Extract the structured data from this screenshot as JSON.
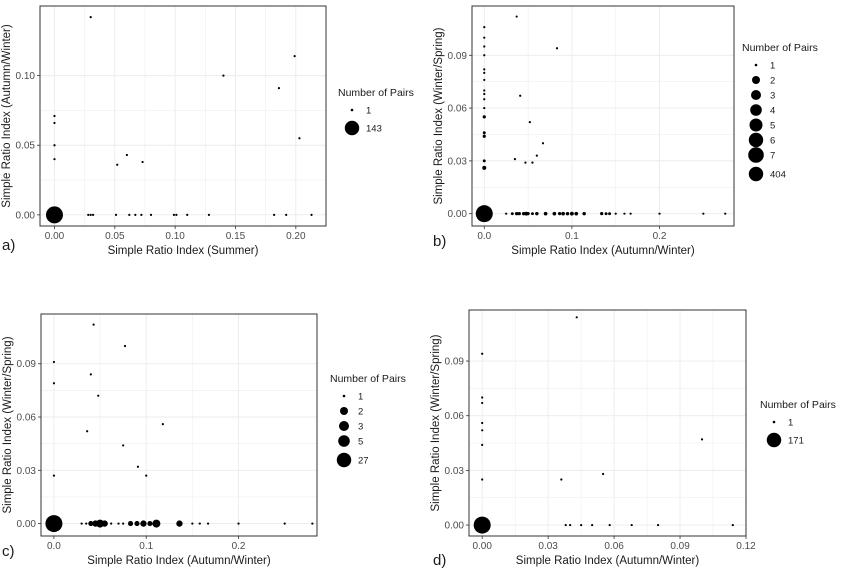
{
  "chart_data": [
    {
      "panel": "a)",
      "type": "scatter",
      "xlabel": "Simple Ratio Index (Summer)",
      "ylabel": "Simple Ratio Index (Autumn/Winter)",
      "xlim": [
        -0.012,
        0.225
      ],
      "ylim": [
        -0.008,
        0.15
      ],
      "xticks": [
        0.0,
        0.05,
        0.1,
        0.15,
        0.2
      ],
      "xtick_labels": [
        "0.00",
        "0.05",
        "0.10",
        "0.15",
        "0.20"
      ],
      "yticks": [
        0.0,
        0.05,
        0.1
      ],
      "ytick_labels": [
        "0.00",
        "0.05",
        "0.10"
      ],
      "legend": {
        "title": "Number of Pairs",
        "entries": [
          {
            "label": "1",
            "pairs": 1
          },
          {
            "label": "143",
            "pairs": 143
          }
        ]
      },
      "points": [
        {
          "x": 0.0,
          "y": 0.0,
          "pairs": 143
        },
        {
          "x": 0.0,
          "y": 0.04,
          "pairs": 1
        },
        {
          "x": 0.0,
          "y": 0.05,
          "pairs": 1
        },
        {
          "x": 0.0,
          "y": 0.066,
          "pairs": 1
        },
        {
          "x": 0.0,
          "y": 0.071,
          "pairs": 1
        },
        {
          "x": 0.028,
          "y": 0.0,
          "pairs": 1
        },
        {
          "x": 0.03,
          "y": 0.0,
          "pairs": 1
        },
        {
          "x": 0.032,
          "y": 0.0,
          "pairs": 1
        },
        {
          "x": 0.03,
          "y": 0.142,
          "pairs": 1
        },
        {
          "x": 0.051,
          "y": 0.0,
          "pairs": 1
        },
        {
          "x": 0.052,
          "y": 0.036,
          "pairs": 1
        },
        {
          "x": 0.06,
          "y": 0.043,
          "pairs": 1
        },
        {
          "x": 0.062,
          "y": 0.0,
          "pairs": 1
        },
        {
          "x": 0.067,
          "y": 0.0,
          "pairs": 1
        },
        {
          "x": 0.072,
          "y": 0.0,
          "pairs": 1
        },
        {
          "x": 0.073,
          "y": 0.038,
          "pairs": 1
        },
        {
          "x": 0.08,
          "y": 0.0,
          "pairs": 1
        },
        {
          "x": 0.099,
          "y": 0.0,
          "pairs": 1
        },
        {
          "x": 0.101,
          "y": 0.0,
          "pairs": 1
        },
        {
          "x": 0.11,
          "y": 0.0,
          "pairs": 1
        },
        {
          "x": 0.128,
          "y": 0.0,
          "pairs": 1
        },
        {
          "x": 0.14,
          "y": 0.1,
          "pairs": 1
        },
        {
          "x": 0.182,
          "y": 0.0,
          "pairs": 1
        },
        {
          "x": 0.186,
          "y": 0.091,
          "pairs": 1
        },
        {
          "x": 0.192,
          "y": 0.0,
          "pairs": 1
        },
        {
          "x": 0.199,
          "y": 0.114,
          "pairs": 1
        },
        {
          "x": 0.203,
          "y": 0.055,
          "pairs": 1
        },
        {
          "x": 0.213,
          "y": 0.0,
          "pairs": 1
        }
      ]
    },
    {
      "panel": "b)",
      "type": "scatter",
      "xlabel": "Simple Ratio Index (Autumn/Winter)",
      "ylabel": "Simple Ratio Index (Winter/Spring)",
      "xlim": [
        -0.014,
        0.285
      ],
      "ylim": [
        -0.007,
        0.118
      ],
      "xticks": [
        0.0,
        0.1,
        0.2
      ],
      "xtick_labels": [
        "0.0",
        "0.1",
        "0.2"
      ],
      "yticks": [
        0.0,
        0.03,
        0.06,
        0.09
      ],
      "ytick_labels": [
        "0.00",
        "0.03",
        "0.06",
        "0.09"
      ],
      "legend": {
        "title": "Number of Pairs",
        "entries": [
          {
            "label": "1",
            "pairs": 1
          },
          {
            "label": "2",
            "pairs": 2
          },
          {
            "label": "3",
            "pairs": 3
          },
          {
            "label": "4",
            "pairs": 4
          },
          {
            "label": "5",
            "pairs": 5
          },
          {
            "label": "6",
            "pairs": 6
          },
          {
            "label": "7",
            "pairs": 7
          },
          {
            "label": "404",
            "pairs": 404
          }
        ]
      },
      "points": [
        {
          "x": 0.0,
          "y": 0.0,
          "pairs": 404
        },
        {
          "x": 0.0,
          "y": 0.026,
          "pairs": 7
        },
        {
          "x": 0.0,
          "y": 0.03,
          "pairs": 2
        },
        {
          "x": 0.0,
          "y": 0.044,
          "pairs": 3
        },
        {
          "x": 0.0,
          "y": 0.046,
          "pairs": 2
        },
        {
          "x": 0.0,
          "y": 0.055,
          "pairs": 3
        },
        {
          "x": 0.0,
          "y": 0.06,
          "pairs": 1
        },
        {
          "x": 0.0,
          "y": 0.065,
          "pairs": 1
        },
        {
          "x": 0.0,
          "y": 0.068,
          "pairs": 1
        },
        {
          "x": 0.0,
          "y": 0.07,
          "pairs": 1
        },
        {
          "x": 0.0,
          "y": 0.076,
          "pairs": 1
        },
        {
          "x": 0.0,
          "y": 0.08,
          "pairs": 1
        },
        {
          "x": 0.0,
          "y": 0.082,
          "pairs": 1
        },
        {
          "x": 0.0,
          "y": 0.09,
          "pairs": 1
        },
        {
          "x": 0.0,
          "y": 0.095,
          "pairs": 1
        },
        {
          "x": 0.0,
          "y": 0.1,
          "pairs": 1
        },
        {
          "x": 0.0,
          "y": 0.106,
          "pairs": 1
        },
        {
          "x": 0.025,
          "y": 0.0,
          "pairs": 1
        },
        {
          "x": 0.032,
          "y": 0.0,
          "pairs": 2
        },
        {
          "x": 0.037,
          "y": 0.0,
          "pairs": 4
        },
        {
          "x": 0.04,
          "y": 0.0,
          "pairs": 3
        },
        {
          "x": 0.045,
          "y": 0.0,
          "pairs": 4
        },
        {
          "x": 0.048,
          "y": 0.0,
          "pairs": 6
        },
        {
          "x": 0.05,
          "y": 0.0,
          "pairs": 3
        },
        {
          "x": 0.055,
          "y": 0.0,
          "pairs": 2
        },
        {
          "x": 0.06,
          "y": 0.0,
          "pairs": 4
        },
        {
          "x": 0.07,
          "y": 0.0,
          "pairs": 5
        },
        {
          "x": 0.08,
          "y": 0.0,
          "pairs": 5
        },
        {
          "x": 0.086,
          "y": 0.0,
          "pairs": 3
        },
        {
          "x": 0.09,
          "y": 0.0,
          "pairs": 5
        },
        {
          "x": 0.095,
          "y": 0.0,
          "pairs": 4
        },
        {
          "x": 0.1,
          "y": 0.0,
          "pairs": 6
        },
        {
          "x": 0.105,
          "y": 0.0,
          "pairs": 5
        },
        {
          "x": 0.114,
          "y": 0.0,
          "pairs": 4
        },
        {
          "x": 0.134,
          "y": 0.0,
          "pairs": 3
        },
        {
          "x": 0.139,
          "y": 0.0,
          "pairs": 2
        },
        {
          "x": 0.143,
          "y": 0.0,
          "pairs": 2
        },
        {
          "x": 0.15,
          "y": 0.0,
          "pairs": 1
        },
        {
          "x": 0.16,
          "y": 0.0,
          "pairs": 1
        },
        {
          "x": 0.167,
          "y": 0.0,
          "pairs": 1
        },
        {
          "x": 0.2,
          "y": 0.0,
          "pairs": 1
        },
        {
          "x": 0.25,
          "y": 0.0,
          "pairs": 1
        },
        {
          "x": 0.275,
          "y": 0.0,
          "pairs": 1
        },
        {
          "x": 0.037,
          "y": 0.112,
          "pairs": 1
        },
        {
          "x": 0.041,
          "y": 0.067,
          "pairs": 1
        },
        {
          "x": 0.035,
          "y": 0.031,
          "pairs": 1
        },
        {
          "x": 0.047,
          "y": 0.029,
          "pairs": 1
        },
        {
          "x": 0.052,
          "y": 0.052,
          "pairs": 1
        },
        {
          "x": 0.055,
          "y": 0.029,
          "pairs": 1
        },
        {
          "x": 0.06,
          "y": 0.033,
          "pairs": 1
        },
        {
          "x": 0.067,
          "y": 0.04,
          "pairs": 1
        },
        {
          "x": 0.083,
          "y": 0.094,
          "pairs": 1
        }
      ]
    },
    {
      "panel": "c)",
      "type": "scatter",
      "xlabel": "Simple Ratio Index (Autumn/Winter)",
      "ylabel": "Simple Ratio Index (Winter/Spring)",
      "xlim": [
        -0.014,
        0.285
      ],
      "ylim": [
        -0.007,
        0.118
      ],
      "xticks": [
        0.0,
        0.1,
        0.2
      ],
      "xtick_labels": [
        "0.0",
        "0.1",
        "0.2"
      ],
      "yticks": [
        0.0,
        0.03,
        0.06,
        0.09
      ],
      "ytick_labels": [
        "0.00",
        "0.03",
        "0.06",
        "0.09"
      ],
      "legend": {
        "title": "Number of Pairs",
        "entries": [
          {
            "label": "1",
            "pairs": 1
          },
          {
            "label": "2",
            "pairs": 2
          },
          {
            "label": "3",
            "pairs": 3
          },
          {
            "label": "5",
            "pairs": 5
          },
          {
            "label": "27",
            "pairs": 27
          }
        ]
      },
      "points": [
        {
          "x": 0.0,
          "y": 0.0,
          "pairs": 27
        },
        {
          "x": 0.0,
          "y": 0.027,
          "pairs": 1
        },
        {
          "x": 0.0,
          "y": 0.079,
          "pairs": 1
        },
        {
          "x": 0.0,
          "y": 0.091,
          "pairs": 1
        },
        {
          "x": 0.03,
          "y": 0.0,
          "pairs": 1
        },
        {
          "x": 0.035,
          "y": 0.0,
          "pairs": 1
        },
        {
          "x": 0.04,
          "y": 0.0,
          "pairs": 2
        },
        {
          "x": 0.045,
          "y": 0.0,
          "pairs": 3
        },
        {
          "x": 0.05,
          "y": 0.0,
          "pairs": 5
        },
        {
          "x": 0.055,
          "y": 0.0,
          "pairs": 3
        },
        {
          "x": 0.062,
          "y": 0.0,
          "pairs": 1
        },
        {
          "x": 0.07,
          "y": 0.0,
          "pairs": 1
        },
        {
          "x": 0.075,
          "y": 0.0,
          "pairs": 1
        },
        {
          "x": 0.083,
          "y": 0.0,
          "pairs": 2
        },
        {
          "x": 0.09,
          "y": 0.0,
          "pairs": 2
        },
        {
          "x": 0.097,
          "y": 0.0,
          "pairs": 3
        },
        {
          "x": 0.104,
          "y": 0.0,
          "pairs": 2
        },
        {
          "x": 0.111,
          "y": 0.0,
          "pairs": 5
        },
        {
          "x": 0.136,
          "y": 0.0,
          "pairs": 3
        },
        {
          "x": 0.15,
          "y": 0.0,
          "pairs": 1
        },
        {
          "x": 0.158,
          "y": 0.0,
          "pairs": 1
        },
        {
          "x": 0.167,
          "y": 0.0,
          "pairs": 1
        },
        {
          "x": 0.2,
          "y": 0.0,
          "pairs": 1
        },
        {
          "x": 0.25,
          "y": 0.0,
          "pairs": 1
        },
        {
          "x": 0.28,
          "y": 0.0,
          "pairs": 1
        },
        {
          "x": 0.036,
          "y": 0.052,
          "pairs": 1
        },
        {
          "x": 0.04,
          "y": 0.084,
          "pairs": 1
        },
        {
          "x": 0.043,
          "y": 0.112,
          "pairs": 1
        },
        {
          "x": 0.048,
          "y": 0.072,
          "pairs": 1
        },
        {
          "x": 0.075,
          "y": 0.044,
          "pairs": 1
        },
        {
          "x": 0.077,
          "y": 0.1,
          "pairs": 1
        },
        {
          "x": 0.091,
          "y": 0.032,
          "pairs": 1
        },
        {
          "x": 0.1,
          "y": 0.027,
          "pairs": 1
        },
        {
          "x": 0.118,
          "y": 0.056,
          "pairs": 1
        }
      ]
    },
    {
      "panel": "d)",
      "type": "scatter",
      "xlabel": "Simple Ratio Index (Autumn/Winter)",
      "ylabel": "Simple Ratio Index (Winter/Spring)",
      "xlim": [
        -0.006,
        0.12
      ],
      "ylim": [
        -0.006,
        0.118
      ],
      "xticks": [
        0.0,
        0.03,
        0.06,
        0.09,
        0.12
      ],
      "xtick_labels": [
        "0.00",
        "0.03",
        "0.06",
        "0.09",
        "0.12"
      ],
      "yticks": [
        0.0,
        0.03,
        0.06,
        0.09
      ],
      "ytick_labels": [
        "0.00",
        "0.03",
        "0.06",
        "0.09"
      ],
      "legend": {
        "title": "Number of Pairs",
        "entries": [
          {
            "label": "1",
            "pairs": 1
          },
          {
            "label": "171",
            "pairs": 171
          }
        ]
      },
      "points": [
        {
          "x": 0.0,
          "y": 0.0,
          "pairs": 171
        },
        {
          "x": 0.0,
          "y": 0.025,
          "pairs": 1
        },
        {
          "x": 0.0,
          "y": 0.044,
          "pairs": 1
        },
        {
          "x": 0.0,
          "y": 0.052,
          "pairs": 1
        },
        {
          "x": 0.0,
          "y": 0.056,
          "pairs": 1
        },
        {
          "x": 0.0,
          "y": 0.067,
          "pairs": 1
        },
        {
          "x": 0.0,
          "y": 0.07,
          "pairs": 1
        },
        {
          "x": 0.0,
          "y": 0.094,
          "pairs": 1
        },
        {
          "x": 0.036,
          "y": 0.025,
          "pairs": 1
        },
        {
          "x": 0.038,
          "y": 0.0,
          "pairs": 1
        },
        {
          "x": 0.04,
          "y": 0.0,
          "pairs": 1
        },
        {
          "x": 0.043,
          "y": 0.114,
          "pairs": 1
        },
        {
          "x": 0.045,
          "y": 0.0,
          "pairs": 1
        },
        {
          "x": 0.05,
          "y": 0.0,
          "pairs": 1
        },
        {
          "x": 0.055,
          "y": 0.028,
          "pairs": 1
        },
        {
          "x": 0.058,
          "y": 0.0,
          "pairs": 1
        },
        {
          "x": 0.068,
          "y": 0.0,
          "pairs": 1
        },
        {
          "x": 0.08,
          "y": 0.0,
          "pairs": 1
        },
        {
          "x": 0.1,
          "y": 0.047,
          "pairs": 1
        },
        {
          "x": 0.114,
          "y": 0.0,
          "pairs": 1
        }
      ]
    }
  ],
  "style": {
    "point_color": "#000000",
    "panel_border": "#333333",
    "grid_color": "#ebebeb"
  }
}
